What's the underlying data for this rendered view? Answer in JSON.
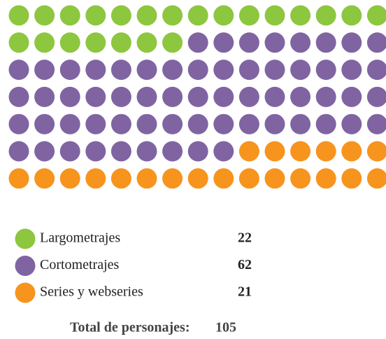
{
  "chart_data": {
    "type": "waffle",
    "categories": [
      "Largometrajes",
      "Cortometrajes",
      "Series y webseries"
    ],
    "values": [
      22,
      62,
      21
    ],
    "colors": [
      "#8dc63f",
      "#8064a2",
      "#f7941d"
    ],
    "columns": 15,
    "total_label": "Total de personajes:",
    "total": 105
  }
}
